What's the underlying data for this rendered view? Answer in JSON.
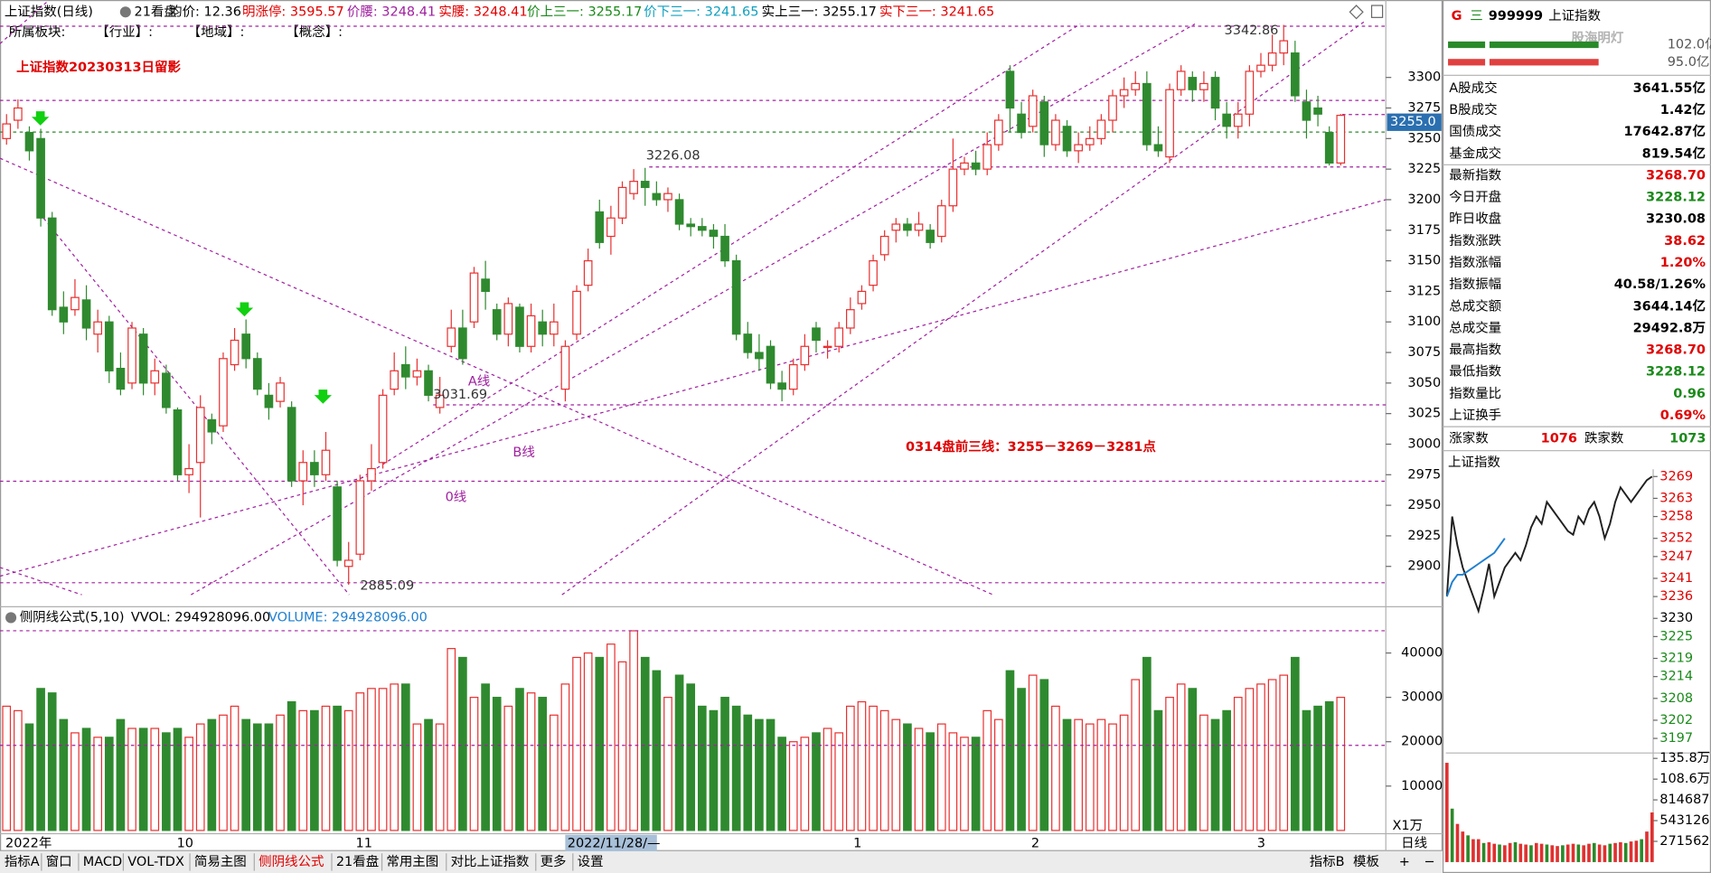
{
  "header": {
    "title": "上证指数(日线)",
    "tool": "21看盘",
    "avg": "均价: 12.36",
    "limit_up": "明涨停: 3595.57",
    "price_waist": "价腰: 3248.41",
    "real_waist": "实腰: 3248.41",
    "price_up": "价上三一: 3255.17",
    "price_down": "价下三一: 3241.65",
    "real_up": "实上三一: 3255.17",
    "real_down": "实下三一: 3241.65"
  },
  "subheader": [
    "所属板块:",
    "【行业】:",
    "【地域】:",
    "【概念】:"
  ],
  "annotations": {
    "title": "上证指数20230313日留影",
    "plan": "0314盘前三线：3255－3269－3281点",
    "high": "3342.86",
    "p1": "3226.08",
    "p2": "3031.69",
    "low": "2885.09",
    "line_a": "A线",
    "line_b": "B线",
    "line_0": "0线",
    "current": "3255.0"
  },
  "kline": {
    "up_color": "#e83030",
    "down_color": "#2f8a2f",
    "ylim": [
      2867,
      3345.5
    ],
    "yticks": [
      3300,
      3275,
      3250,
      3225,
      3200,
      3175,
      3150,
      3125,
      3100,
      3075,
      3050,
      3025,
      3000,
      2975,
      2950,
      2925,
      2900
    ],
    "candles": [
      [
        3250,
        3262,
        3270,
        3245
      ],
      [
        3265,
        3275,
        3282,
        3258
      ],
      [
        3255,
        3240,
        3260,
        3232
      ],
      [
        3250,
        3185,
        3258,
        3178
      ],
      [
        3185,
        3110,
        3190,
        3105
      ],
      [
        3112,
        3100,
        3125,
        3090
      ],
      [
        3110,
        3120,
        3135,
        3105
      ],
      [
        3118,
        3095,
        3130,
        3085
      ],
      [
        3090,
        3100,
        3110,
        3075
      ],
      [
        3100,
        3060,
        3105,
        3050
      ],
      [
        3062,
        3045,
        3075,
        3040
      ],
      [
        3050,
        3095,
        3100,
        3045
      ],
      [
        3090,
        3050,
        3095,
        3040
      ],
      [
        3050,
        3060,
        3070,
        3040
      ],
      [
        3058,
        3030,
        3065,
        3025
      ],
      [
        3028,
        2975,
        3030,
        2970
      ],
      [
        2975,
        2980,
        3000,
        2960
      ],
      [
        2985,
        3030,
        3040,
        2940
      ],
      [
        3020,
        3010,
        3025,
        3000
      ],
      [
        3015,
        3070,
        3075,
        3010
      ],
      [
        3065,
        3085,
        3095,
        3060
      ],
      [
        3090,
        3070,
        3102,
        3062
      ],
      [
        3070,
        3045,
        3075,
        3040
      ],
      [
        3040,
        3030,
        3050,
        3020
      ],
      [
        3035,
        3050,
        3055,
        3030
      ],
      [
        3030,
        2970,
        3035,
        2965
      ],
      [
        2970,
        2985,
        2995,
        2950
      ],
      [
        2985,
        2975,
        2995,
        2965
      ],
      [
        2975,
        2995,
        3010,
        2970
      ],
      [
        2965,
        2905,
        2970,
        2900
      ],
      [
        2900,
        2905,
        2920,
        2885
      ],
      [
        2910,
        2970,
        2975,
        2905
      ],
      [
        2970,
        2980,
        3000,
        2962
      ],
      [
        2985,
        3040,
        3045,
        2980
      ],
      [
        3045,
        3060,
        3075,
        3040
      ],
      [
        3065,
        3055,
        3080,
        3045
      ],
      [
        3055,
        3060,
        3070,
        3048
      ],
      [
        3060,
        3040,
        3065,
        3035
      ],
      [
        3030,
        3040,
        3055,
        3025
      ],
      [
        3080,
        3095,
        3110,
        3075
      ],
      [
        3095,
        3070,
        3110,
        3065
      ],
      [
        3100,
        3140,
        3145,
        3095
      ],
      [
        3135,
        3125,
        3150,
        3110
      ],
      [
        3110,
        3090,
        3115,
        3085
      ],
      [
        3090,
        3115,
        3120,
        3080
      ],
      [
        3112,
        3080,
        3115,
        3075
      ],
      [
        3080,
        3105,
        3115,
        3075
      ],
      [
        3100,
        3090,
        3110,
        3080
      ],
      [
        3090,
        3100,
        3115,
        3080
      ],
      [
        3045,
        3080,
        3085,
        3035
      ],
      [
        3090,
        3125,
        3130,
        3085
      ],
      [
        3130,
        3150,
        3160,
        3125
      ],
      [
        3190,
        3165,
        3200,
        3160
      ],
      [
        3170,
        3185,
        3195,
        3155
      ],
      [
        3185,
        3210,
        3215,
        3180
      ],
      [
        3205,
        3215,
        3225,
        3200
      ],
      [
        3215,
        3210,
        3226,
        3195
      ],
      [
        3205,
        3200,
        3215,
        3195
      ],
      [
        3200,
        3205,
        3210,
        3190
      ],
      [
        3200,
        3180,
        3205,
        3175
      ],
      [
        3180,
        3178,
        3185,
        3170
      ],
      [
        3178,
        3175,
        3185,
        3170
      ],
      [
        3175,
        3170,
        3180,
        3160
      ],
      [
        3170,
        3150,
        3180,
        3145
      ],
      [
        3150,
        3090,
        3155,
        3085
      ],
      [
        3090,
        3075,
        3100,
        3070
      ],
      [
        3075,
        3070,
        3090,
        3060
      ],
      [
        3080,
        3050,
        3085,
        3045
      ],
      [
        3050,
        3045,
        3060,
        3035
      ],
      [
        3045,
        3065,
        3070,
        3040
      ],
      [
        3065,
        3080,
        3090,
        3060
      ],
      [
        3095,
        3085,
        3100,
        3075
      ],
      [
        3080,
        3080,
        3085,
        3070
      ],
      [
        3080,
        3095,
        3100,
        3075
      ],
      [
        3095,
        3110,
        3120,
        3090
      ],
      [
        3115,
        3125,
        3130,
        3110
      ],
      [
        3130,
        3150,
        3155,
        3125
      ],
      [
        3155,
        3170,
        3175,
        3150
      ],
      [
        3175,
        3180,
        3185,
        3165
      ],
      [
        3180,
        3175,
        3185,
        3170
      ],
      [
        3175,
        3180,
        3190,
        3170
      ],
      [
        3175,
        3165,
        3180,
        3160
      ],
      [
        3170,
        3195,
        3200,
        3165
      ],
      [
        3195,
        3225,
        3250,
        3190
      ],
      [
        3225,
        3230,
        3235,
        3220
      ],
      [
        3230,
        3225,
        3240,
        3220
      ],
      [
        3225,
        3245,
        3255,
        3220
      ],
      [
        3245,
        3265,
        3270,
        3240
      ],
      [
        3305,
        3275,
        3310,
        3255
      ],
      [
        3270,
        3255,
        3280,
        3250
      ],
      [
        3260,
        3285,
        3290,
        3255
      ],
      [
        3280,
        3245,
        3285,
        3235
      ],
      [
        3245,
        3265,
        3270,
        3240
      ],
      [
        3260,
        3240,
        3265,
        3235
      ],
      [
        3240,
        3245,
        3255,
        3230
      ],
      [
        3245,
        3250,
        3260,
        3240
      ],
      [
        3250,
        3265,
        3270,
        3245
      ],
      [
        3265,
        3285,
        3290,
        3255
      ],
      [
        3285,
        3290,
        3300,
        3275
      ],
      [
        3290,
        3295,
        3305,
        3285
      ],
      [
        3295,
        3245,
        3305,
        3240
      ],
      [
        3245,
        3240,
        3260,
        3235
      ],
      [
        3235,
        3290,
        3295,
        3230
      ],
      [
        3290,
        3305,
        3310,
        3285
      ],
      [
        3300,
        3290,
        3305,
        3280
      ],
      [
        3290,
        3295,
        3305,
        3280
      ],
      [
        3300,
        3275,
        3305,
        3265
      ],
      [
        3270,
        3260,
        3280,
        3250
      ],
      [
        3260,
        3270,
        3280,
        3250
      ],
      [
        3270,
        3305,
        3310,
        3260
      ],
      [
        3305,
        3310,
        3320,
        3300
      ],
      [
        3310,
        3320,
        3335,
        3305
      ],
      [
        3320,
        3330,
        3343,
        3310
      ],
      [
        3320,
        3285,
        3330,
        3280
      ],
      [
        3280,
        3265,
        3290,
        3250
      ],
      [
        3275,
        3270,
        3285,
        3260
      ],
      [
        3255,
        3230,
        3260,
        3228
      ],
      [
        3230,
        3269,
        3270,
        3228
      ]
    ],
    "volumes": [
      28000,
      27000,
      24000,
      32000,
      31000,
      25000,
      22000,
      23000,
      21000,
      21000,
      25000,
      23000,
      23000,
      23000,
      22000,
      23000,
      21000,
      24000,
      25000,
      26000,
      28000,
      25000,
      24000,
      24000,
      26000,
      29000,
      27000,
      27000,
      28000,
      28000,
      27000,
      31000,
      32000,
      32000,
      33000,
      33000,
      24000,
      25000,
      24000,
      41000,
      39000,
      30000,
      33000,
      30000,
      28000,
      32000,
      31000,
      30000,
      26000,
      33000,
      39000,
      40000,
      39000,
      42000,
      38000,
      45000,
      39000,
      36000,
      30000,
      35000,
      33000,
      28000,
      27000,
      30000,
      28000,
      26000,
      25000,
      25000,
      21000,
      20000,
      21000,
      22000,
      23000,
      22000,
      28000,
      29000,
      28000,
      27000,
      25000,
      24000,
      23000,
      22000,
      24000,
      22000,
      21000,
      21000,
      27000,
      25000,
      36000,
      32000,
      35000,
      34000,
      28000,
      25000,
      25000,
      24000,
      25000,
      24000,
      26000,
      34000,
      39000,
      27000,
      30000,
      33000,
      32000,
      26000,
      25000,
      27000,
      30000,
      32000,
      33000,
      34000,
      35000,
      39000,
      27000,
      28000,
      29000,
      30000
    ]
  },
  "volume_panel": {
    "title": "侧阴线公式(5,10)",
    "vvol": "VVOL: 294928096.00",
    "volume": "VOLUME: 294928096.00",
    "unit": "X1万",
    "ylim": [
      0,
      46000
    ],
    "yticks": [
      40000,
      30000,
      20000,
      10000
    ]
  },
  "date_axis": [
    "2022年",
    "10",
    "11",
    "2022/11/28/—",
    "1",
    "2",
    "3",
    "日线"
  ],
  "toolbar": [
    "指标A",
    "窗口",
    "MACD",
    "VOL-TDX",
    "简易主图",
    "侧阴线公式",
    "21看盘",
    "常用主图",
    "对比上证指数",
    "更多",
    "设置"
  ],
  "toolbar_right": [
    "指标B",
    "模板",
    "+",
    "−"
  ],
  "quote_panel": {
    "flag": "G",
    "menu": "三",
    "code": "999999",
    "name": "上证指数",
    "watermark": "股海明灯",
    "bar_top": "102.0亿",
    "bar_bottom": "95.0亿",
    "rows": [
      [
        "A股成交",
        "3641.55亿"
      ],
      [
        "B股成交",
        "1.42亿"
      ],
      [
        "国债成交",
        "17642.87亿"
      ],
      [
        "基金成交",
        "819.54亿"
      ],
      [
        "最新指数",
        "3268.70"
      ],
      [
        "今日开盘",
        "3228.12"
      ],
      [
        "昨日收盘",
        "3230.08"
      ],
      [
        "指数涨跌",
        "38.62"
      ],
      [
        "指数涨幅",
        "1.20%"
      ],
      [
        "指数振幅",
        "40.58/1.26%"
      ],
      [
        "总成交额",
        "3644.14亿"
      ],
      [
        "总成交量",
        "29492.8万"
      ],
      [
        "最高指数",
        "3268.70"
      ],
      [
        "最低指数",
        "3228.12"
      ],
      [
        "指数量比",
        "0.96"
      ],
      [
        "上证换手",
        "0.69%"
      ]
    ],
    "row_colors": [
      "#000",
      "#000",
      "#000",
      "#000",
      "#e00000",
      "#1a8a1a",
      "#000",
      "#e00000",
      "#e00000",
      "#000",
      "#000",
      "#000",
      "#e00000",
      "#1a8a1a",
      "#1a8a1a",
      "#e00000"
    ],
    "up_label": "涨家数",
    "up_count": "1076",
    "down_label": "跌家数",
    "down_count": "1073"
  },
  "intraday": {
    "title": "上证指数",
    "ylim": [
      3193,
      3271
    ],
    "yticks": [
      3269,
      3263,
      3258,
      3252,
      3247,
      3241,
      3236,
      3230,
      3225,
      3219,
      3214,
      3208,
      3202,
      3197
    ],
    "line": [
      3236,
      3258,
      3250,
      3244,
      3240,
      3236,
      3232,
      3238,
      3245,
      3236,
      3240,
      3244,
      3246,
      3248,
      3246,
      3250,
      3255,
      3258,
      3256,
      3262,
      3260,
      3258,
      3256,
      3254,
      3253,
      3258,
      3256,
      3260,
      3262,
      3258,
      3252,
      3256,
      3262,
      3266,
      3264,
      3262,
      3264,
      3266,
      3268,
      3269
    ],
    "avg": [
      3236,
      3240,
      3242,
      3242,
      3243,
      3244,
      3245,
      3246,
      3247,
      3248,
      3250,
      3252
    ],
    "line_color": "#202020",
    "avg_color": "#2080d0",
    "vol_ylim": [
      0,
      1429000
    ],
    "vol_yticks": [
      {
        "value": 1358000,
        "label": "135.8万"
      },
      {
        "value": 1086000,
        "label": "108.6万"
      },
      814687,
      543126,
      271562
    ],
    "volumes": [
      1300000,
      700000,
      500000,
      400000,
      350000,
      300000,
      300000,
      250000,
      260000,
      240000,
      230000,
      220000,
      250000,
      260000,
      240000,
      230000,
      220000,
      250000,
      240000,
      230000,
      220000,
      210000,
      220000,
      230000,
      240000,
      230000,
      220000,
      240000,
      250000,
      230000,
      220000,
      240000,
      250000,
      260000,
      250000,
      270000,
      280000,
      300000,
      400000,
      650000
    ]
  }
}
